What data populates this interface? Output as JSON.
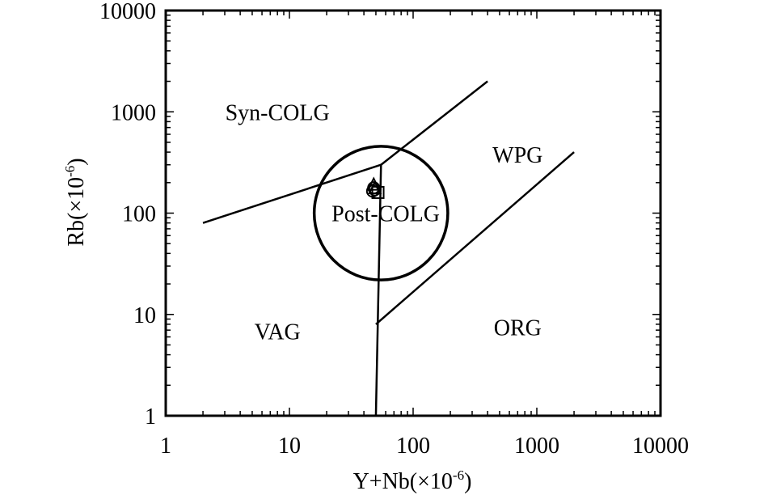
{
  "chart_data": {
    "type": "scatter",
    "title": "",
    "xlabel": "Y+Nb(×10",
    "xlabel_sup": "-6",
    "xlabel_end": ")",
    "ylabel": "Rb(×10",
    "ylabel_sup": "-6",
    "ylabel_end": ")",
    "x_scale": "log",
    "y_scale": "log",
    "xlim": [
      1,
      10000
    ],
    "ylim": [
      1,
      10000
    ],
    "x_ticks": [
      1,
      10,
      100,
      1000,
      10000
    ],
    "x_tick_labels": [
      "1",
      "10",
      "100",
      "1000",
      "10000"
    ],
    "y_ticks": [
      1,
      10,
      100,
      1000,
      10000
    ],
    "y_tick_labels": [
      "1",
      "10",
      "100",
      "1000",
      "10000"
    ],
    "grid": false,
    "field_labels": [
      {
        "text": "Syn-COLG",
        "x": 8,
        "y": 1000
      },
      {
        "text": "WPG",
        "x": 700,
        "y": 380
      },
      {
        "text": "Post-COLG",
        "x": 60,
        "y": 100
      },
      {
        "text": "VAG",
        "x": 8,
        "y": 6.8
      },
      {
        "text": "ORG",
        "x": 700,
        "y": 7.5
      }
    ],
    "boundaries": [
      {
        "name": "VAG/Syn-COLG",
        "x": [
          2,
          55
        ],
        "y": [
          80,
          300
        ]
      },
      {
        "name": "Syn-COLG/WPG",
        "x": [
          55,
          400
        ],
        "y": [
          300,
          2000
        ]
      },
      {
        "name": "VAG/ORG",
        "x": [
          50,
          55
        ],
        "y": [
          1,
          300
        ]
      },
      {
        "name": "WPG/ORG",
        "x": [
          50,
          2000
        ],
        "y": [
          8,
          400
        ]
      }
    ],
    "post_colg_circle": {
      "center_x": 55,
      "center_y": 100,
      "radius_log": 0.54
    },
    "series": [
      {
        "marker": "triangle",
        "points": [
          {
            "x": 48,
            "y": 190
          },
          {
            "x": 49,
            "y": 175
          }
        ]
      },
      {
        "marker": "circle",
        "points": [
          {
            "x": 48,
            "y": 178
          },
          {
            "x": 47,
            "y": 165
          },
          {
            "x": 49,
            "y": 170
          }
        ]
      },
      {
        "marker": "square",
        "points": [
          {
            "x": 52,
            "y": 160
          }
        ]
      }
    ]
  }
}
